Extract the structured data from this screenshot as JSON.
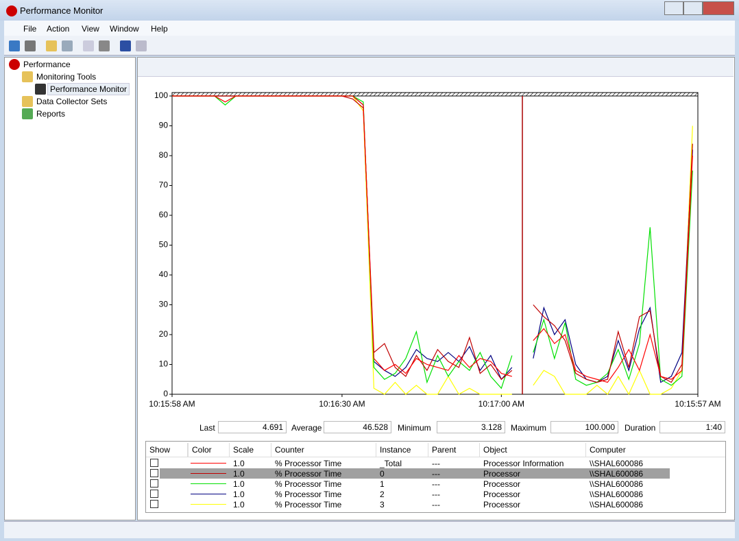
{
  "window": {
    "title": "Performance Monitor"
  },
  "menu": [
    "File",
    "Action",
    "View",
    "Window",
    "Help"
  ],
  "tree": [
    "Performance",
    "Monitoring Tools",
    "Performance Monitor",
    "Data Collector Sets",
    "Reports"
  ],
  "chart_data": {
    "type": "line",
    "x": [
      0,
      2,
      4,
      6,
      8,
      10,
      12,
      14,
      16,
      18,
      20,
      22,
      24,
      26,
      28,
      30,
      32,
      34,
      36,
      38,
      40,
      42,
      44,
      46,
      48,
      50,
      52,
      54,
      56,
      58,
      60,
      62,
      64,
      66,
      68,
      70,
      72,
      74,
      76,
      78,
      80,
      82,
      84,
      86,
      88,
      90,
      92,
      94,
      96,
      98
    ],
    "xlim": [
      0,
      99
    ],
    "xticks": [
      {
        "value": 0,
        "label": "10:15:58 AM"
      },
      {
        "value": 32,
        "label": "10:16:30 AM"
      },
      {
        "value": 62,
        "label": "10:17:00 AM"
      },
      {
        "value": 99,
        "label": "10:15:57 AM"
      }
    ],
    "ylim": [
      0,
      100
    ],
    "yticks": [
      0,
      10,
      20,
      30,
      40,
      50,
      60,
      70,
      80,
      90,
      100
    ],
    "series": [
      {
        "color": "#ff0000",
        "values": [
          100,
          100,
          100,
          100,
          100,
          98,
          100,
          100,
          100,
          100,
          100,
          100,
          100,
          100,
          100,
          100,
          100,
          100,
          97,
          12,
          8,
          10,
          7,
          12,
          10,
          9,
          8,
          13,
          9,
          12,
          11,
          7,
          6,
          null,
          18,
          22,
          17,
          20,
          8,
          6,
          5,
          4,
          9,
          15,
          8,
          20,
          6,
          5,
          8,
          80
        ]
      },
      {
        "color": "#c00000",
        "values": [
          100,
          100,
          100,
          100,
          100,
          100,
          100,
          100,
          100,
          100,
          100,
          100,
          100,
          100,
          100,
          100,
          100,
          99,
          96,
          14,
          17,
          9,
          6,
          13,
          8,
          15,
          11,
          9,
          19,
          7,
          10,
          5,
          8,
          null,
          30,
          26,
          23,
          18,
          7,
          5,
          4,
          5,
          21,
          9,
          26,
          28,
          6,
          4,
          10,
          84
        ]
      },
      {
        "color": "#00e000",
        "values": [
          100,
          100,
          100,
          100,
          100,
          97,
          100,
          100,
          100,
          100,
          100,
          100,
          100,
          100,
          100,
          100,
          100,
          100,
          98,
          9,
          5,
          7,
          12,
          21,
          4,
          13,
          6,
          11,
          8,
          14,
          6,
          2,
          13,
          null,
          14,
          25,
          12,
          24,
          5,
          3,
          4,
          7,
          15,
          5,
          17,
          56,
          5,
          3,
          6,
          75
        ]
      },
      {
        "color": "#000080",
        "values": [
          100,
          100,
          100,
          100,
          100,
          100,
          100,
          100,
          100,
          100,
          100,
          100,
          100,
          100,
          100,
          100,
          100,
          100,
          97,
          11,
          8,
          6,
          9,
          15,
          12,
          11,
          14,
          11,
          16,
          8,
          13,
          5,
          9,
          null,
          12,
          29,
          20,
          25,
          10,
          5,
          4,
          6,
          18,
          8,
          22,
          29,
          4,
          6,
          14,
          82
        ]
      },
      {
        "color": "#ffff00",
        "values": [
          100,
          100,
          100,
          100,
          100,
          100,
          100,
          100,
          100,
          100,
          100,
          100,
          100,
          100,
          100,
          100,
          100,
          100,
          95,
          2,
          0,
          4,
          0,
          3,
          0,
          0,
          6,
          0,
          2,
          0,
          0,
          0,
          0,
          null,
          3,
          8,
          6,
          0,
          0,
          0,
          3,
          0,
          6,
          0,
          8,
          0,
          0,
          2,
          8,
          90
        ]
      }
    ]
  },
  "stats": {
    "labels": [
      "Last",
      "Average",
      "Minimum",
      "Maximum",
      "Duration"
    ],
    "values": [
      "4.691",
      "46.528",
      "3.128",
      "100.000",
      "1:40"
    ]
  },
  "table": {
    "columns": [
      "Show",
      "Color",
      "Scale",
      "Counter",
      "Instance",
      "Parent",
      "Object",
      "Computer"
    ],
    "rows": [
      [
        "1.0",
        "% Processor Time",
        "_Total",
        "---",
        "Processor Information",
        "\\\\SHAL600086"
      ],
      [
        "1.0",
        "% Processor Time",
        "0",
        "---",
        "Processor",
        "\\\\SHAL600086"
      ],
      [
        "1.0",
        "% Processor Time",
        "1",
        "---",
        "Processor",
        "\\\\SHAL600086"
      ],
      [
        "1.0",
        "% Processor Time",
        "2",
        "---",
        "Processor",
        "\\\\SHAL600086"
      ],
      [
        "1.0",
        "% Processor Time",
        "3",
        "---",
        "Processor",
        "\\\\SHAL600086"
      ]
    ]
  }
}
